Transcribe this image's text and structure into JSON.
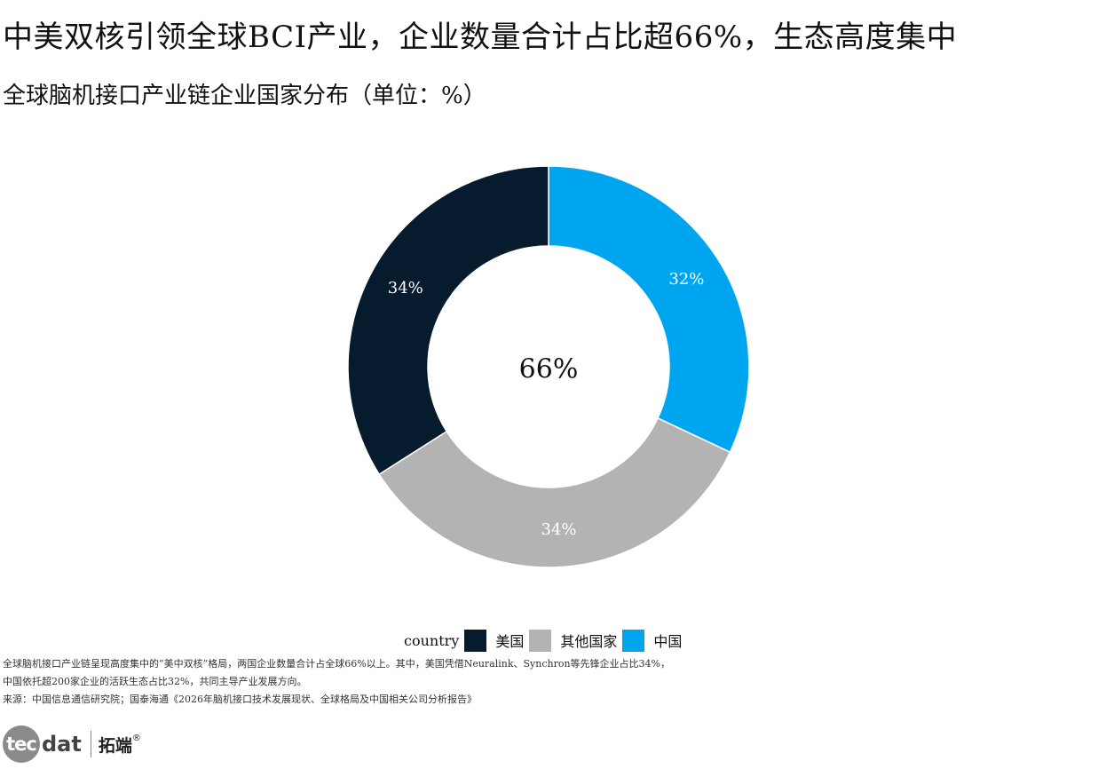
{
  "title": "中美双核引领全球BCI产业，企业数量合计占比超66%，生态高度集中",
  "subtitle": "全球脑机接口产业链企业国家分布（单位：%）",
  "chart_data": {
    "type": "pie",
    "donut": true,
    "center_label": "66%",
    "legend_title": "country",
    "slices": [
      {
        "name": "中国",
        "value": 32,
        "label": "32%",
        "color": "#00a5ef",
        "label_color": "#ffffff"
      },
      {
        "name": "其他国家",
        "value": 34,
        "label": "34%",
        "color": "#b3b3b3",
        "label_color": "#ffffff"
      },
      {
        "name": "美国",
        "value": 34,
        "label": "34%",
        "color": "#061b2d",
        "label_color": "#ffffff"
      }
    ],
    "legend_order": [
      "美国",
      "其他国家",
      "中国"
    ],
    "legend_placement": "bottom"
  },
  "notes": {
    "line1": "全球脑机接口产业链呈现高度集中的“美中双核”格局，两国企业数量合计占全球66%以上。其中，美国凭借Neuralink、Synchron等先锋企业占比34%，",
    "line2": "中国依托超200家企业的活跃生态占比32%，共同主导产业发展方向。",
    "source": "来源：中国信息通信研究院；国泰海通《2026年脑机接口技术发展现状、全球格局及中国相关公司分析报告》"
  },
  "logo": {
    "circle_text": "tec",
    "rest_text": "dat",
    "cn_text": "拓端",
    "reg": "®"
  }
}
